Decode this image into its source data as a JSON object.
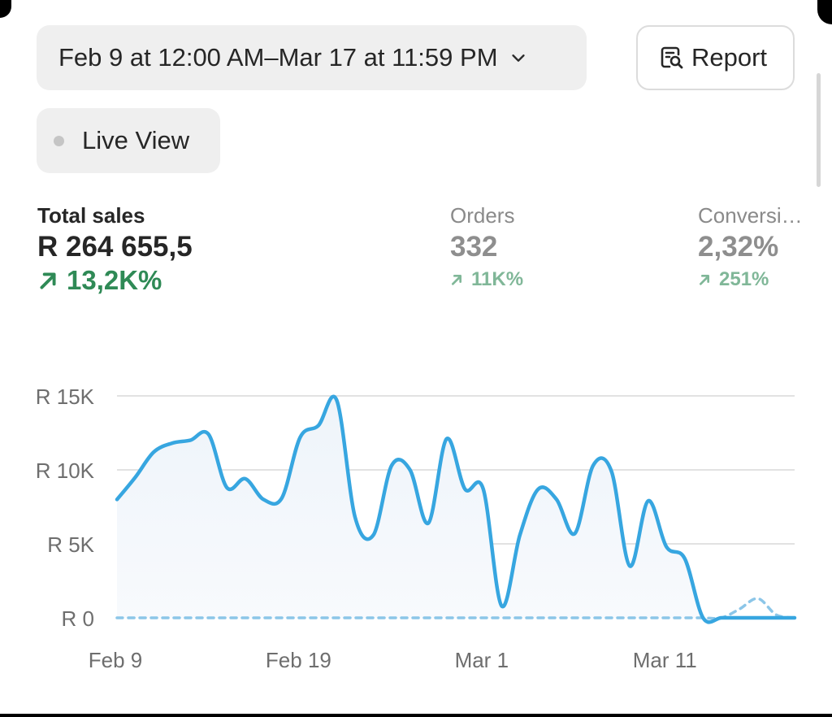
{
  "date_range": {
    "label": "Feb 9 at 12:00 AM–Mar 17 at 11:59 PM"
  },
  "report_button": {
    "label": "Report"
  },
  "live_view": {
    "label": "Live View"
  },
  "metrics": [
    {
      "label": "Total sales",
      "value": "R 264 655,5",
      "change": "13,2K%"
    },
    {
      "label": "Orders",
      "value": "332",
      "change": "11K%"
    },
    {
      "label": "Conversi…",
      "value": "2,32%",
      "change": "251%"
    }
  ],
  "colors": {
    "accent_line": "#37a6e0",
    "comparison_line": "#8cc6e8",
    "positive": "#2f8a56",
    "positive_muted": "#80b798"
  },
  "chart_data": {
    "type": "line",
    "ylim": [
      0,
      15000
    ],
    "y_ticks": [
      {
        "value": 0,
        "label": "R 0"
      },
      {
        "value": 5000,
        "label": "R 5K"
      },
      {
        "value": 10000,
        "label": "R 10K"
      },
      {
        "value": 15000,
        "label": "R 15K"
      }
    ],
    "x_ticks": [
      {
        "index": 0,
        "label": "Feb 9"
      },
      {
        "index": 10,
        "label": "Feb 19"
      },
      {
        "index": 20,
        "label": "Mar 1"
      },
      {
        "index": 30,
        "label": "Mar 11"
      }
    ],
    "grid": true,
    "series": [
      {
        "values": [
          8000,
          9500,
          11200,
          11800,
          12000,
          12400,
          8800,
          9400,
          8000,
          8100,
          12200,
          13000,
          14700,
          6800,
          5600,
          10300,
          10000,
          6400,
          12100,
          8700,
          8700,
          800,
          5600,
          8700,
          8000,
          5700,
          10300,
          9900,
          3500,
          7900,
          4800,
          4000,
          0,
          0,
          0,
          0,
          0,
          0
        ]
      },
      {
        "values": [
          0,
          0,
          0,
          0,
          0,
          0,
          0,
          0,
          0,
          0,
          0,
          0,
          0,
          0,
          0,
          0,
          0,
          0,
          0,
          0,
          0,
          0,
          0,
          0,
          0,
          0,
          0,
          0,
          0,
          0,
          0,
          0,
          0,
          0,
          600,
          1300,
          200,
          0
        ]
      }
    ]
  }
}
